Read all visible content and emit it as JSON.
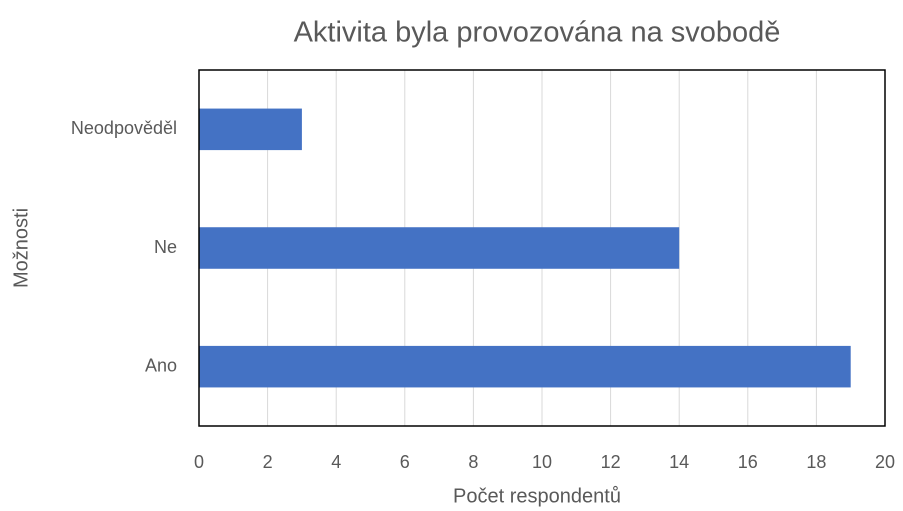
{
  "chart_data": {
    "type": "bar",
    "orientation": "horizontal",
    "title": "Aktivita byla provozována na svobodě",
    "x_label": "Počet respondentů",
    "y_label": "Možnosti",
    "categories": [
      "Neodpověděl",
      "Ne",
      "Ano"
    ],
    "values": [
      3,
      14,
      19
    ],
    "color": "#4472c4",
    "xlim": [
      0,
      20
    ],
    "xticks": [
      0,
      2,
      4,
      6,
      8,
      10,
      12,
      14,
      16,
      18,
      20
    ],
    "grid": true
  }
}
